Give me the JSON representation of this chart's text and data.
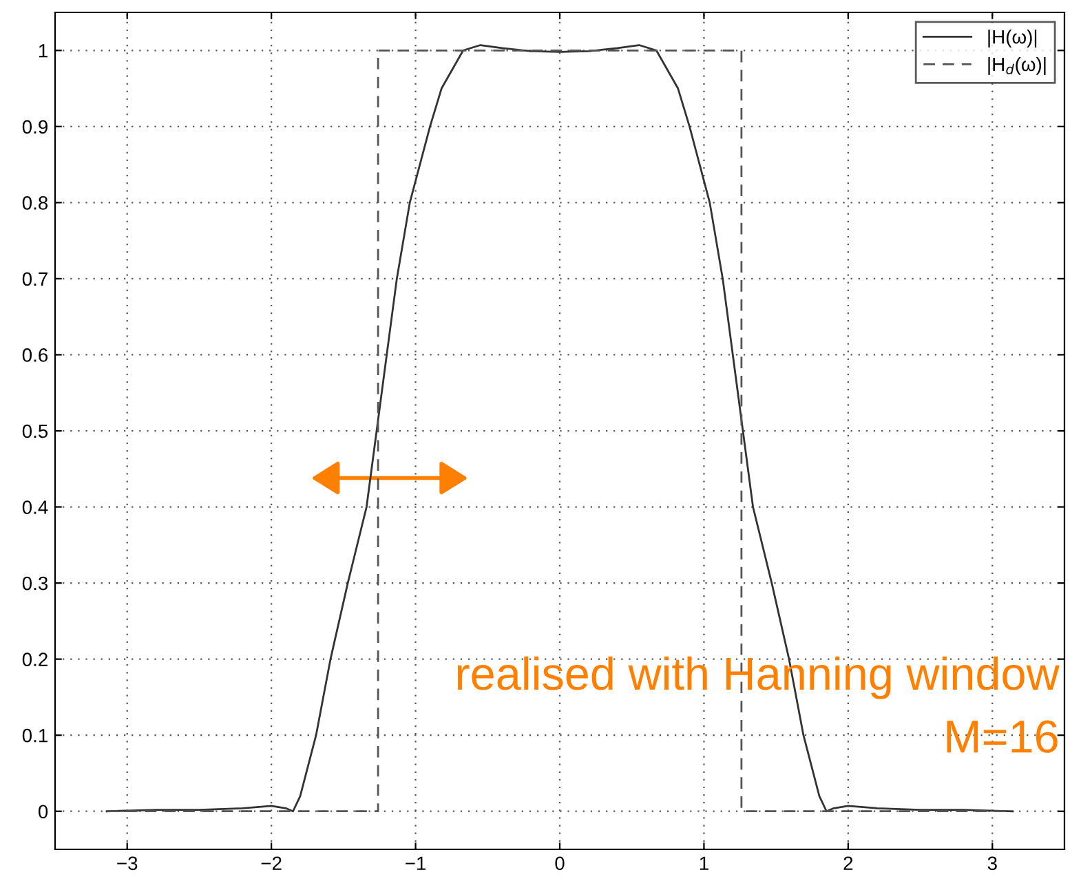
{
  "chart_data": {
    "type": "line",
    "x": [
      -3.1416,
      -2.8,
      -2.5,
      -2.2,
      -2.0,
      -1.9,
      -1.85,
      -1.8,
      -1.69,
      -1.59,
      -1.47,
      -1.34,
      -1.27,
      -1.2,
      -1.13,
      -1.04,
      -0.9,
      -0.82,
      -0.67,
      -0.55,
      -0.4,
      -0.2,
      0,
      0.2,
      0.4,
      0.55,
      0.67,
      0.82,
      0.9,
      1.04,
      1.13,
      1.2,
      1.27,
      1.34,
      1.47,
      1.59,
      1.69,
      1.8,
      1.85,
      1.9,
      2.0,
      2.2,
      2.5,
      2.8,
      3.1416
    ],
    "series": [
      {
        "name": "|H(ω)|",
        "color": "#333333",
        "line_style": "solid",
        "values": [
          0,
          0.002,
          0.002,
          0.004,
          0.007,
          0.004,
          0.0,
          0.02,
          0.1,
          0.2,
          0.3,
          0.4,
          0.5,
          0.6,
          0.7,
          0.8,
          0.9,
          0.95,
          1.0,
          1.007,
          1.003,
          0.999,
          0.998,
          0.999,
          1.003,
          1.007,
          1.0,
          0.95,
          0.9,
          0.8,
          0.7,
          0.6,
          0.5,
          0.4,
          0.3,
          0.2,
          0.1,
          0.02,
          0.0,
          0.004,
          0.007,
          0.004,
          0.002,
          0.002,
          0
        ]
      },
      {
        "name": "|H$_{d}$(ω)|",
        "color": "#555555",
        "line_style": "dashed",
        "x": [
          -3.1416,
          -1.26,
          -1.26,
          1.26,
          1.26,
          3.1416
        ],
        "values": [
          0,
          0,
          1,
          1,
          0,
          0
        ]
      }
    ],
    "xlim": [
      -3.5,
      3.5
    ],
    "xticks": [
      -3,
      -2,
      -1,
      0,
      1,
      2,
      3
    ],
    "ylim": [
      -0.05,
      1.05
    ],
    "yticks": [
      0,
      0.1,
      0.2,
      0.3,
      0.4,
      0.5,
      0.6,
      0.7,
      0.8,
      0.9,
      1
    ],
    "grid": true,
    "legend": "top right",
    "marker": "none",
    "annotations": [
      "realised with Hanning window",
      "M=16"
    ]
  }
}
